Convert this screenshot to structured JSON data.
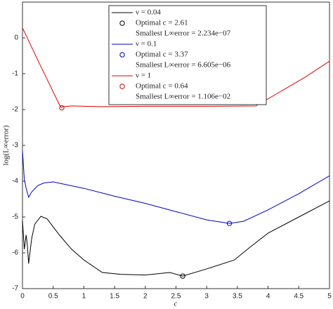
{
  "chart_data": {
    "type": "line",
    "x_label": "c",
    "y_label": "log(L∞error)",
    "xlim": [
      0,
      5
    ],
    "ylim": [
      -7,
      1
    ],
    "xticks": [
      0,
      0.5,
      1,
      1.5,
      2,
      2.5,
      3,
      3.5,
      4,
      4.5,
      5
    ],
    "yticks": [
      -7,
      -6,
      -5,
      -4,
      -3,
      -2,
      -1,
      0
    ],
    "series": [
      {
        "name": "ν = 0.04",
        "color": "#000000",
        "optimal_label": "Optimal c = 2.61",
        "smallest_label": "Smallest L∞error = 2.234e−07",
        "optimal": {
          "x": 2.61,
          "y": -6.65
        },
        "x": [
          0,
          0.03,
          0.06,
          0.08,
          0.1,
          0.15,
          0.2,
          0.3,
          0.4,
          0.6,
          0.8,
          1.0,
          1.3,
          1.6,
          2.0,
          2.4,
          2.61,
          3.0,
          3.45,
          3.7,
          4.0,
          4.5,
          5.0
        ],
        "values": [
          -5.1,
          -5.9,
          -5.5,
          -5.8,
          -6.3,
          -5.6,
          -5.2,
          -4.98,
          -5.05,
          -5.5,
          -5.9,
          -6.2,
          -6.55,
          -6.6,
          -6.62,
          -6.55,
          -6.65,
          -6.45,
          -6.2,
          -5.85,
          -5.45,
          -5.0,
          -4.55
        ]
      },
      {
        "name": "ν = 0.1",
        "color": "#0000cc",
        "optimal_label": "Optimal c = 3.37",
        "smallest_label": "Smallest L∞error = 6.605e−06",
        "optimal": {
          "x": 3.37,
          "y": -5.18
        },
        "x": [
          0,
          0.03,
          0.06,
          0.1,
          0.15,
          0.25,
          0.35,
          0.5,
          1.0,
          1.5,
          2.0,
          2.5,
          3.0,
          3.37,
          3.6,
          4.0,
          4.5,
          5.0
        ],
        "values": [
          -3.15,
          -3.95,
          -4.2,
          -4.45,
          -4.3,
          -4.12,
          -4.05,
          -4.02,
          -4.2,
          -4.42,
          -4.62,
          -4.85,
          -5.08,
          -5.18,
          -5.12,
          -4.8,
          -4.35,
          -3.85
        ]
      },
      {
        "name": "ν = 1",
        "color": "#dd0000",
        "optimal_label": "Optimal c = 0.64",
        "smallest_label": "Smallest L∞error = 1.106e−02",
        "optimal": {
          "x": 0.64,
          "y": -1.95
        },
        "x": [
          0,
          0.3,
          0.62,
          0.8,
          1.3,
          2.0,
          3.0,
          3.8,
          4.2,
          4.6,
          5.0
        ],
        "values": [
          0.28,
          -0.8,
          -1.93,
          -1.9,
          -1.92,
          -1.91,
          -1.91,
          -1.9,
          -1.5,
          -1.1,
          -0.65
        ]
      }
    ]
  }
}
